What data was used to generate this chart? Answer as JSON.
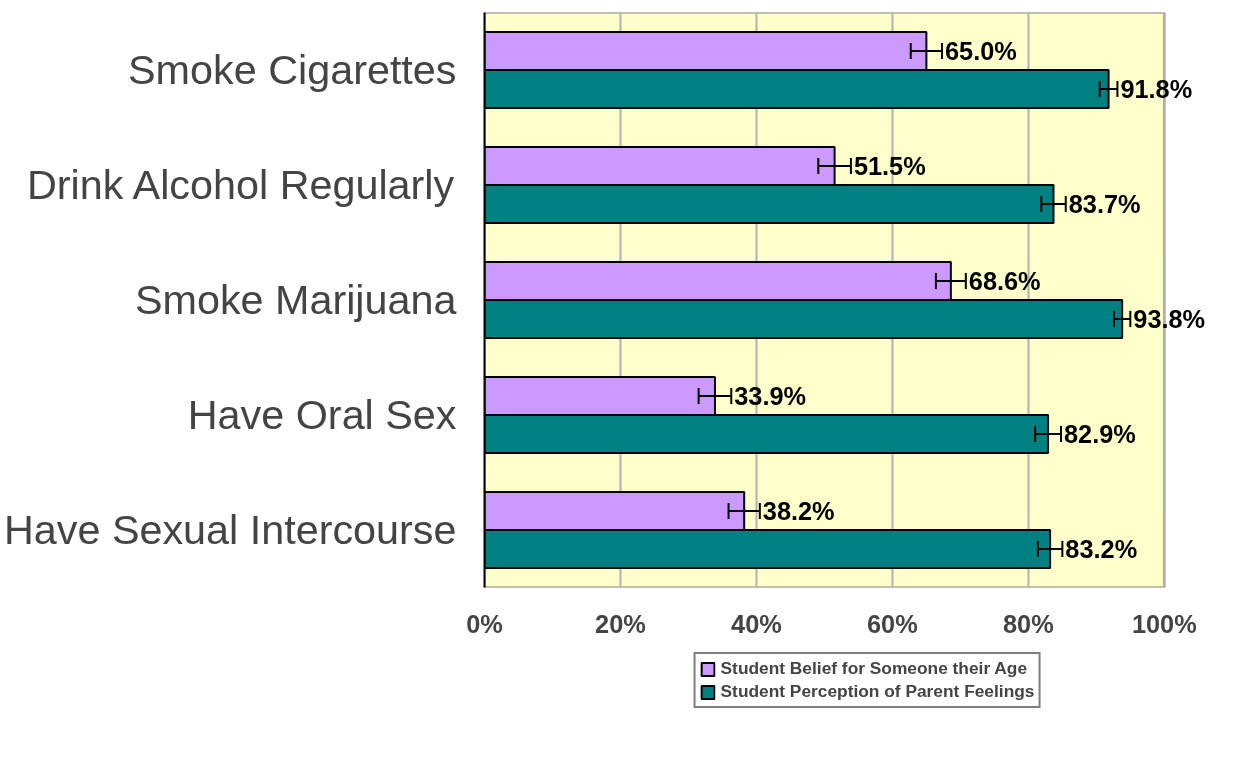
{
  "chart_data": {
    "type": "bar",
    "orientation": "horizontal",
    "categories": [
      "Smoke Cigarettes",
      "Drink Alcohol Regularly",
      "Smoke Marijuana",
      "Have Oral Sex",
      "Have Sexual Intercourse"
    ],
    "series": [
      {
        "name": "Student Belief for Someone their Age",
        "color": "#cc99ff",
        "values": [
          65.0,
          51.5,
          68.6,
          33.9,
          38.2
        ],
        "errors": [
          2.3,
          2.4,
          2.2,
          2.4,
          2.3
        ],
        "value_labels": [
          "65.0%",
          "51.5%",
          "68.6%",
          "33.9%",
          "38.2%"
        ]
      },
      {
        "name": "Student Perception of Parent Feelings",
        "color": "#008080",
        "values": [
          91.8,
          83.7,
          93.8,
          82.9,
          83.2
        ],
        "errors": [
          1.3,
          1.8,
          1.2,
          1.9,
          1.8
        ],
        "value_labels": [
          "91.8%",
          "83.7%",
          "93.8%",
          "82.9%",
          "83.2%"
        ]
      }
    ],
    "xlim": [
      0,
      100
    ],
    "xticks": [
      {
        "value": 0,
        "label": "0%"
      },
      {
        "value": 20,
        "label": "20%"
      },
      {
        "value": 40,
        "label": "40%"
      },
      {
        "value": 60,
        "label": "60%"
      },
      {
        "value": 80,
        "label": "80%"
      },
      {
        "value": 100,
        "label": "100%"
      }
    ],
    "grid": "x",
    "legend": "bottom"
  }
}
